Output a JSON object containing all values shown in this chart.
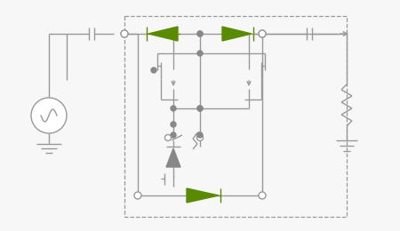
{
  "bg_color": "#f7f7f7",
  "line_color": "#999999",
  "green_color": "#5a8a00",
  "dot_color": "#888888",
  "fig_bg": "#f7f7f7"
}
